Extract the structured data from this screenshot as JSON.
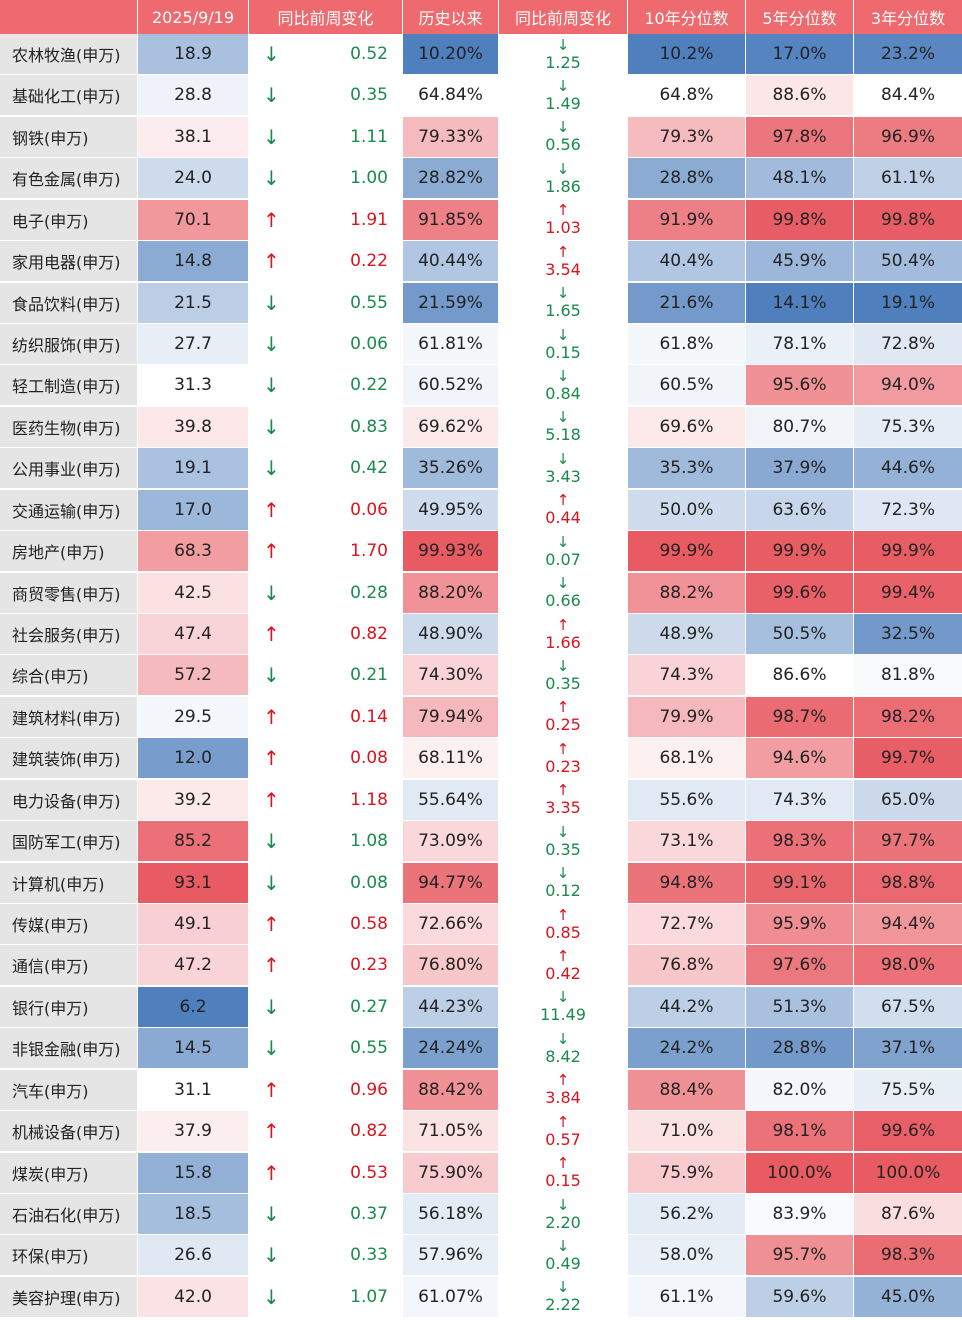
{
  "chart_data": {
    "type": "table",
    "columns": [
      "",
      "2025/9/19",
      "同比前周变化",
      "历史以来",
      "同比前周变化",
      "10年分位数",
      "5年分位数",
      "3年分位数"
    ],
    "colors": {
      "header": "#ee6a6e",
      "up": "#d8151f",
      "down": "#1b8a4d",
      "high": "#e85b63",
      "mid": "#ffffff",
      "low": "#4f7fbd",
      "name_bg": "#e5e5e5"
    },
    "rows": [
      {
        "name": "农林牧渔(申万)",
        "value": "18.9",
        "dir": "down",
        "chg": "0.52",
        "hist": "10.20%",
        "dir2": "down",
        "chg2": "1.25",
        "p10": "10.2%",
        "p5": "17.0%",
        "p3": "23.2%"
      },
      {
        "name": "基础化工(申万)",
        "value": "28.8",
        "dir": "down",
        "chg": "0.35",
        "hist": "64.84%",
        "dir2": "down",
        "chg2": "1.49",
        "p10": "64.8%",
        "p5": "88.6%",
        "p3": "84.4%"
      },
      {
        "name": "钢铁(申万)",
        "value": "38.1",
        "dir": "down",
        "chg": "1.11",
        "hist": "79.33%",
        "dir2": "down",
        "chg2": "0.56",
        "p10": "79.3%",
        "p5": "97.8%",
        "p3": "96.9%"
      },
      {
        "name": "有色金属(申万)",
        "value": "24.0",
        "dir": "down",
        "chg": "1.00",
        "hist": "28.82%",
        "dir2": "down",
        "chg2": "1.86",
        "p10": "28.8%",
        "p5": "48.1%",
        "p3": "61.1%"
      },
      {
        "name": "电子(申万)",
        "value": "70.1",
        "dir": "up",
        "chg": "1.91",
        "hist": "91.85%",
        "dir2": "up",
        "chg2": "1.03",
        "p10": "91.9%",
        "p5": "99.8%",
        "p3": "99.8%"
      },
      {
        "name": "家用电器(申万)",
        "value": "14.8",
        "dir": "up",
        "chg": "0.22",
        "hist": "40.44%",
        "dir2": "up",
        "chg2": "3.54",
        "p10": "40.4%",
        "p5": "45.9%",
        "p3": "50.4%"
      },
      {
        "name": "食品饮料(申万)",
        "value": "21.5",
        "dir": "down",
        "chg": "0.55",
        "hist": "21.59%",
        "dir2": "down",
        "chg2": "1.65",
        "p10": "21.6%",
        "p5": "14.1%",
        "p3": "19.1%"
      },
      {
        "name": "纺织服饰(申万)",
        "value": "27.7",
        "dir": "down",
        "chg": "0.06",
        "hist": "61.81%",
        "dir2": "down",
        "chg2": "0.15",
        "p10": "61.8%",
        "p5": "78.1%",
        "p3": "72.8%"
      },
      {
        "name": "轻工制造(申万)",
        "value": "31.3",
        "dir": "down",
        "chg": "0.22",
        "hist": "60.52%",
        "dir2": "down",
        "chg2": "0.84",
        "p10": "60.5%",
        "p5": "95.6%",
        "p3": "94.0%"
      },
      {
        "name": "医药生物(申万)",
        "value": "39.8",
        "dir": "down",
        "chg": "0.83",
        "hist": "69.62%",
        "dir2": "down",
        "chg2": "5.18",
        "p10": "69.6%",
        "p5": "80.7%",
        "p3": "75.3%"
      },
      {
        "name": "公用事业(申万)",
        "value": "19.1",
        "dir": "down",
        "chg": "0.42",
        "hist": "35.26%",
        "dir2": "down",
        "chg2": "3.43",
        "p10": "35.3%",
        "p5": "37.9%",
        "p3": "44.6%"
      },
      {
        "name": "交通运输(申万)",
        "value": "17.0",
        "dir": "up",
        "chg": "0.06",
        "hist": "49.95%",
        "dir2": "up",
        "chg2": "0.44",
        "p10": "50.0%",
        "p5": "63.6%",
        "p3": "72.3%"
      },
      {
        "name": "房地产(申万)",
        "value": "68.3",
        "dir": "up",
        "chg": "1.70",
        "hist": "99.93%",
        "dir2": "down",
        "chg2": "0.07",
        "p10": "99.9%",
        "p5": "99.9%",
        "p3": "99.9%"
      },
      {
        "name": "商贸零售(申万)",
        "value": "42.5",
        "dir": "down",
        "chg": "0.28",
        "hist": "88.20%",
        "dir2": "down",
        "chg2": "0.66",
        "p10": "88.2%",
        "p5": "99.6%",
        "p3": "99.4%"
      },
      {
        "name": "社会服务(申万)",
        "value": "47.4",
        "dir": "up",
        "chg": "0.82",
        "hist": "48.90%",
        "dir2": "up",
        "chg2": "1.66",
        "p10": "48.9%",
        "p5": "50.5%",
        "p3": "32.5%"
      },
      {
        "name": "综合(申万)",
        "value": "57.2",
        "dir": "down",
        "chg": "0.21",
        "hist": "74.30%",
        "dir2": "down",
        "chg2": "0.35",
        "p10": "74.3%",
        "p5": "86.6%",
        "p3": "81.8%"
      },
      {
        "name": "建筑材料(申万)",
        "value": "29.5",
        "dir": "up",
        "chg": "0.14",
        "hist": "79.94%",
        "dir2": "up",
        "chg2": "0.25",
        "p10": "79.9%",
        "p5": "98.7%",
        "p3": "98.2%"
      },
      {
        "name": "建筑装饰(申万)",
        "value": "12.0",
        "dir": "up",
        "chg": "0.08",
        "hist": "68.11%",
        "dir2": "up",
        "chg2": "0.23",
        "p10": "68.1%",
        "p5": "94.6%",
        "p3": "99.7%"
      },
      {
        "name": "电力设备(申万)",
        "value": "39.2",
        "dir": "up",
        "chg": "1.18",
        "hist": "55.64%",
        "dir2": "up",
        "chg2": "3.35",
        "p10": "55.6%",
        "p5": "74.3%",
        "p3": "65.0%"
      },
      {
        "name": "国防军工(申万)",
        "value": "85.2",
        "dir": "down",
        "chg": "1.08",
        "hist": "73.09%",
        "dir2": "down",
        "chg2": "0.35",
        "p10": "73.1%",
        "p5": "98.3%",
        "p3": "97.7%"
      },
      {
        "name": "计算机(申万)",
        "value": "93.1",
        "dir": "down",
        "chg": "0.08",
        "hist": "94.77%",
        "dir2": "down",
        "chg2": "0.12",
        "p10": "94.8%",
        "p5": "99.1%",
        "p3": "98.8%"
      },
      {
        "name": "传媒(申万)",
        "value": "49.1",
        "dir": "up",
        "chg": "0.58",
        "hist": "72.66%",
        "dir2": "up",
        "chg2": "0.85",
        "p10": "72.7%",
        "p5": "95.9%",
        "p3": "94.4%"
      },
      {
        "name": "通信(申万)",
        "value": "47.2",
        "dir": "up",
        "chg": "0.23",
        "hist": "76.80%",
        "dir2": "up",
        "chg2": "0.42",
        "p10": "76.8%",
        "p5": "97.6%",
        "p3": "98.0%"
      },
      {
        "name": "银行(申万)",
        "value": "6.2",
        "dir": "down",
        "chg": "0.27",
        "hist": "44.23%",
        "dir2": "down",
        "chg2": "11.49",
        "p10": "44.2%",
        "p5": "51.3%",
        "p3": "67.5%"
      },
      {
        "name": "非银金融(申万)",
        "value": "14.5",
        "dir": "down",
        "chg": "0.55",
        "hist": "24.24%",
        "dir2": "down",
        "chg2": "8.42",
        "p10": "24.2%",
        "p5": "28.8%",
        "p3": "37.1%"
      },
      {
        "name": "汽车(申万)",
        "value": "31.1",
        "dir": "up",
        "chg": "0.96",
        "hist": "88.42%",
        "dir2": "up",
        "chg2": "3.84",
        "p10": "88.4%",
        "p5": "82.0%",
        "p3": "75.5%"
      },
      {
        "name": "机械设备(申万)",
        "value": "37.9",
        "dir": "up",
        "chg": "0.82",
        "hist": "71.05%",
        "dir2": "up",
        "chg2": "0.57",
        "p10": "71.0%",
        "p5": "98.1%",
        "p3": "99.6%"
      },
      {
        "name": "煤炭(申万)",
        "value": "15.8",
        "dir": "up",
        "chg": "0.53",
        "hist": "75.90%",
        "dir2": "up",
        "chg2": "0.15",
        "p10": "75.9%",
        "p5": "100.0%",
        "p3": "100.0%"
      },
      {
        "name": "石油石化(申万)",
        "value": "18.5",
        "dir": "down",
        "chg": "0.37",
        "hist": "56.18%",
        "dir2": "down",
        "chg2": "2.20",
        "p10": "56.2%",
        "p5": "83.9%",
        "p3": "87.6%"
      },
      {
        "name": "环保(申万)",
        "value": "26.6",
        "dir": "down",
        "chg": "0.33",
        "hist": "57.96%",
        "dir2": "down",
        "chg2": "0.49",
        "p10": "58.0%",
        "p5": "95.7%",
        "p3": "98.3%"
      },
      {
        "name": "美容护理(申万)",
        "value": "42.0",
        "dir": "down",
        "chg": "1.07",
        "hist": "61.07%",
        "dir2": "down",
        "chg2": "2.22",
        "p10": "61.1%",
        "p5": "59.6%",
        "p3": "45.0%"
      }
    ]
  }
}
